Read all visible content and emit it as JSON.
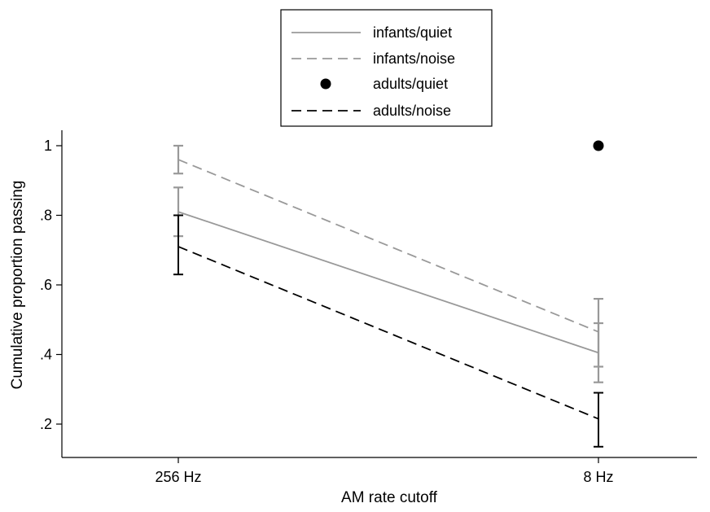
{
  "chart_data": {
    "type": "line",
    "xlabel": "AM rate cutoff",
    "ylabel": "Cumulative proportion passing",
    "categories": [
      "256 Hz",
      "8 Hz"
    ],
    "ylim": [
      0.13,
      1.05
    ],
    "yticks": [
      1,
      0.8,
      0.6,
      0.4,
      0.2
    ],
    "ytick_labels": [
      "1",
      ".8",
      ".6",
      ".4",
      ".2"
    ],
    "legend_position": "top-center",
    "grid": false,
    "series": [
      {
        "name": "infants/quiet",
        "color": "#999999",
        "line": "solid",
        "marker": "none",
        "values": [
          0.81,
          0.405
        ],
        "ci_low": [
          0.74,
          0.32
        ],
        "ci_high": [
          0.88,
          0.49
        ]
      },
      {
        "name": "infants/noise",
        "color": "#999999",
        "line": "dashed",
        "marker": "none",
        "values": [
          0.96,
          0.465
        ],
        "ci_low": [
          0.92,
          0.365
        ],
        "ci_high": [
          1.0,
          0.56
        ]
      },
      {
        "name": "adults/quiet",
        "color": "#000000",
        "line": "none",
        "marker": "dot",
        "values": [
          null,
          1.0
        ]
      },
      {
        "name": "adults/noise",
        "color": "#000000",
        "line": "dashed",
        "marker": "none",
        "values": [
          0.71,
          0.215
        ],
        "ci_low": [
          0.63,
          0.135
        ],
        "ci_high": [
          0.8,
          0.29
        ]
      }
    ]
  }
}
